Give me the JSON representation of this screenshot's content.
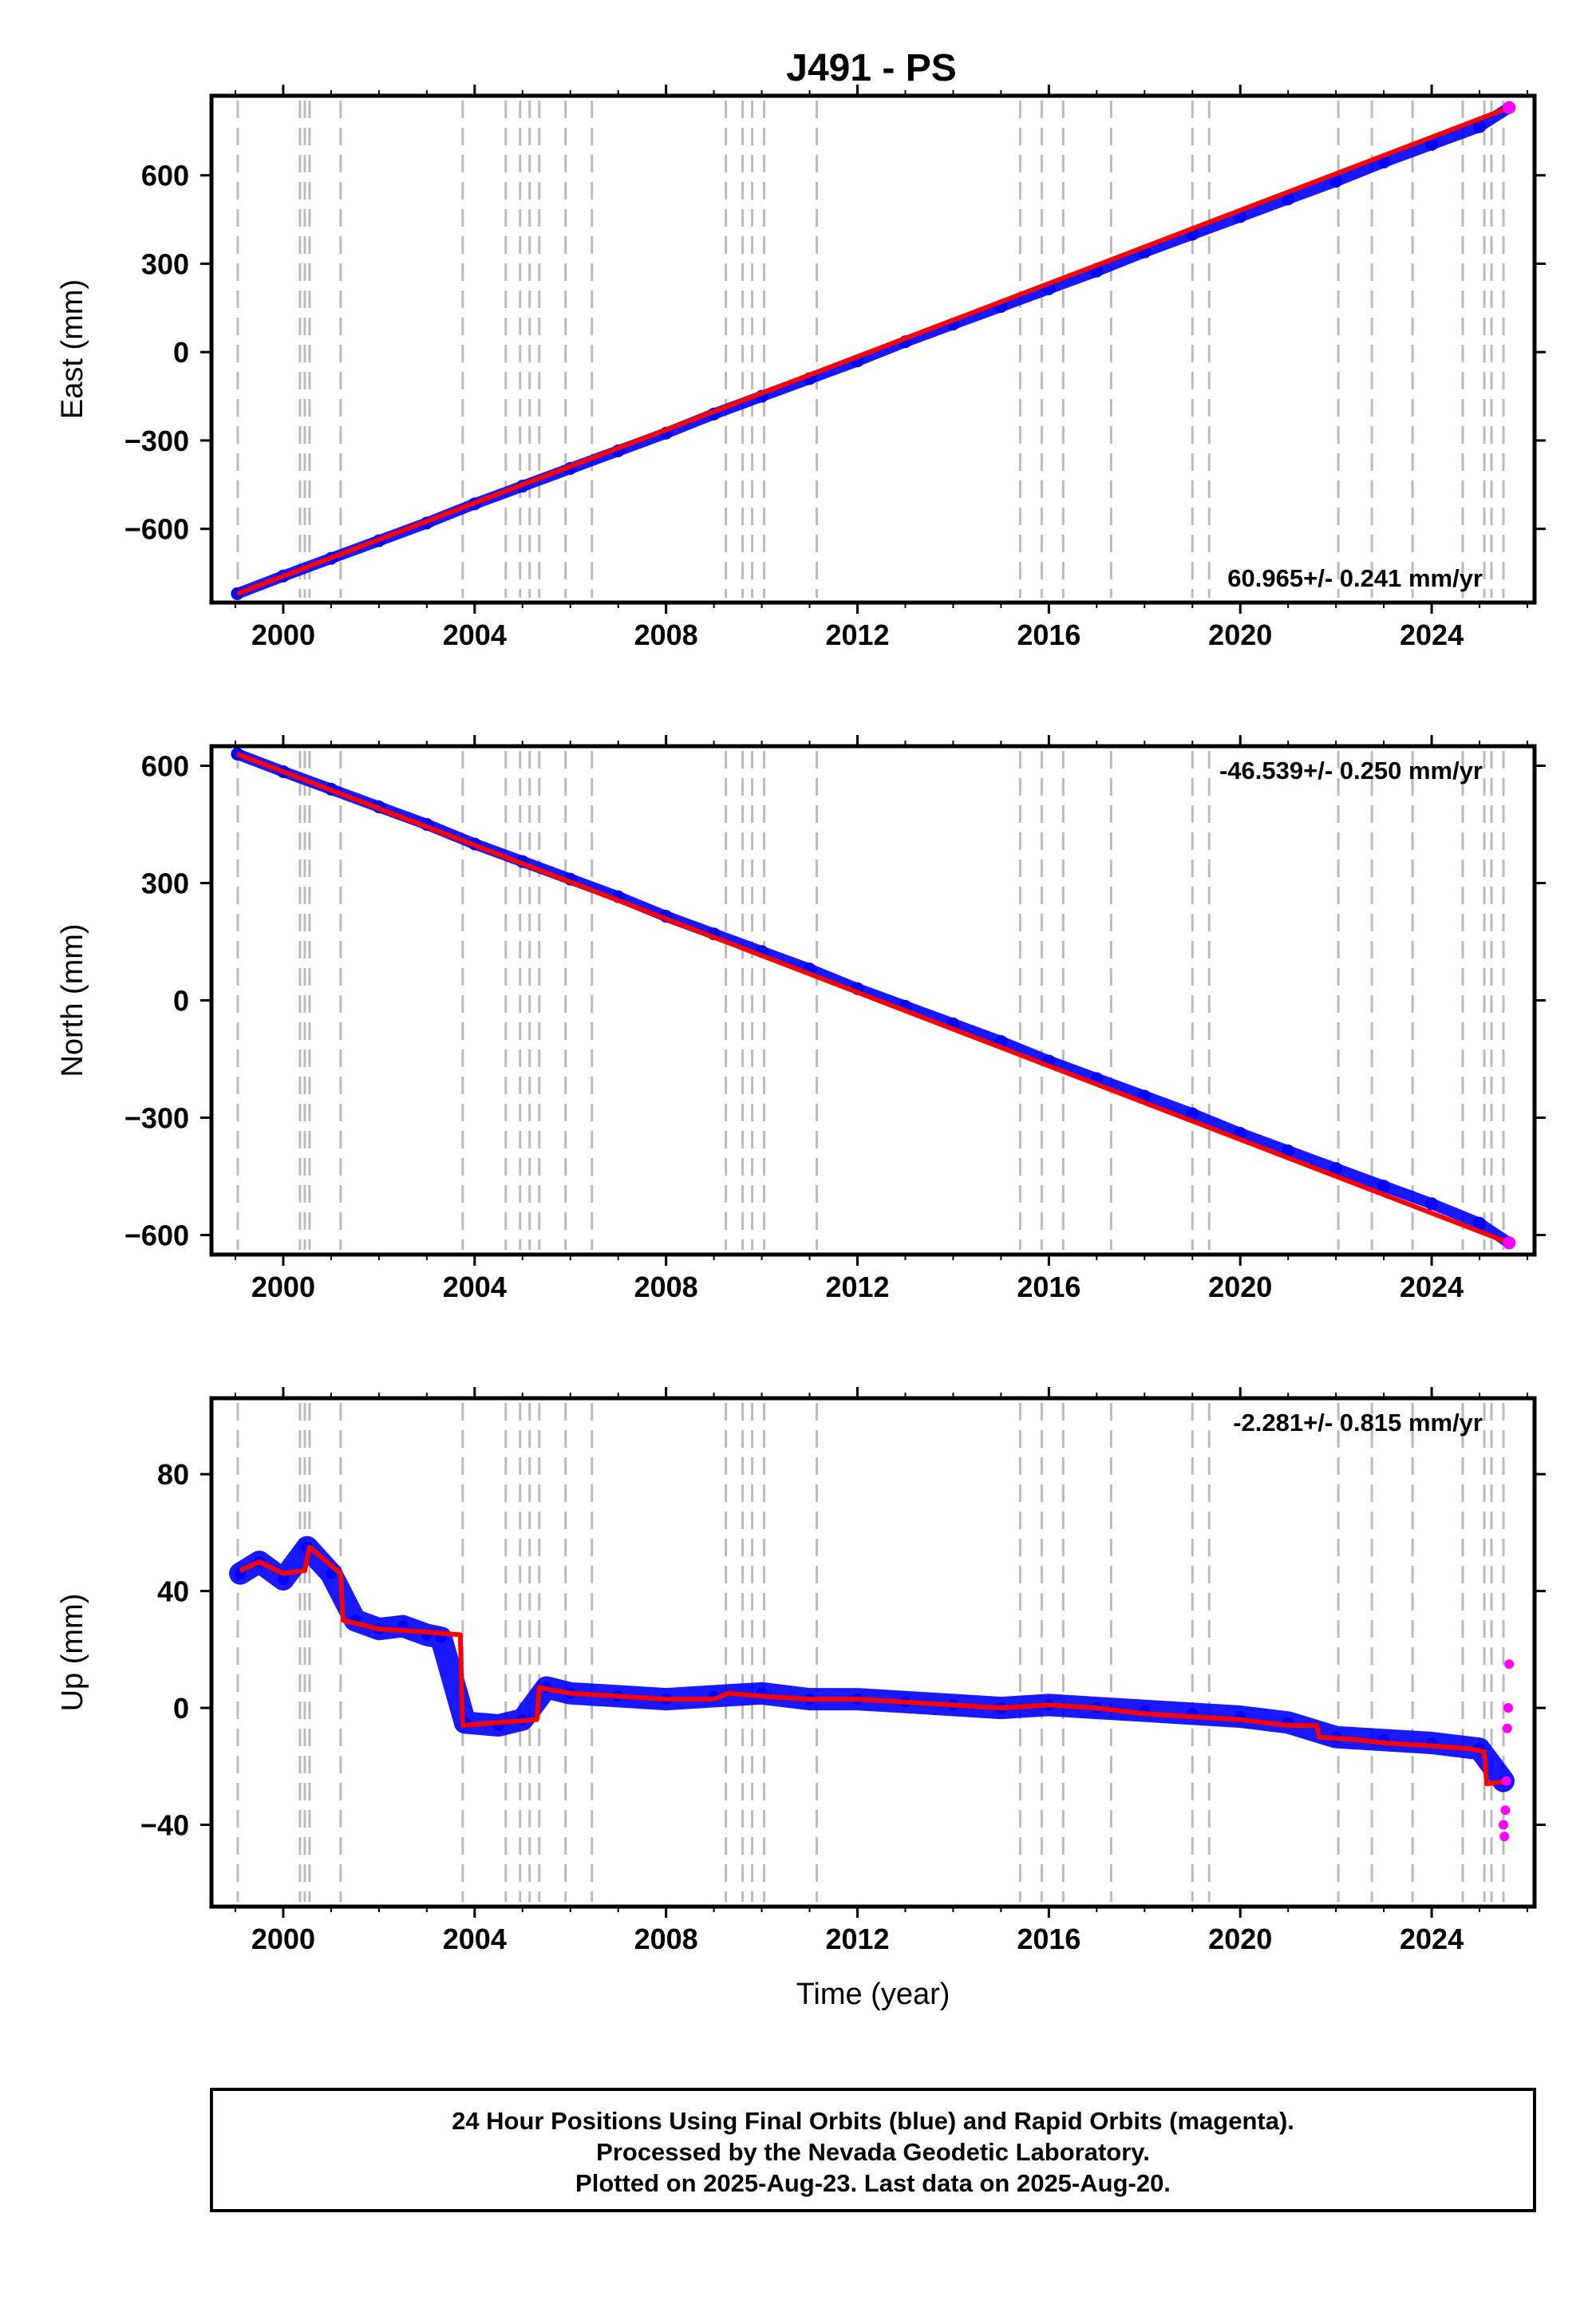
{
  "title": "J491 - PS",
  "chart_data": [
    {
      "type": "scatter",
      "id": "east",
      "ylabel": "East (mm)",
      "xlabel": "",
      "rate_text": "60.965+/- 0.241 mm/yr",
      "xlim": [
        1998.5,
        2026.15
      ],
      "ylim": [
        -850,
        870
      ],
      "xticks": [
        2000,
        2004,
        2008,
        2012,
        2016,
        2020,
        2024
      ],
      "yticks": [
        -600,
        -300,
        0,
        300,
        600
      ],
      "ytick_labels": [
        "−600",
        "−300",
        "0",
        "300",
        "600"
      ],
      "series": [
        {
          "color": "#0000ff",
          "x": [
            1999.04,
            2000.0,
            2001.0,
            2002.0,
            2003.0,
            2004.0,
            2005.0,
            2006.0,
            2007.0,
            2008.0,
            2009.0,
            2010.0,
            2011.0,
            2012.0,
            2013.0,
            2014.0,
            2015.0,
            2016.0,
            2017.0,
            2018.0,
            2019.0,
            2020.0,
            2021.0,
            2022.0,
            2023.0,
            2024.0,
            2025.0,
            2025.62
          ],
          "y": [
            -820,
            -760,
            -700,
            -640,
            -580,
            -515,
            -455,
            -395,
            -335,
            -275,
            -210,
            -150,
            -90,
            -30,
            35,
            95,
            155,
            215,
            275,
            340,
            400,
            460,
            520,
            580,
            645,
            705,
            765,
            830
          ]
        },
        {
          "color": "#ff0000",
          "x": [
            1999.04,
            2025.62
          ],
          "y": [
            -820,
            830
          ]
        }
      ]
    },
    {
      "type": "scatter",
      "id": "north",
      "ylabel": "North (mm)",
      "xlabel": "",
      "rate_text": "-46.539+/- 0.250 mm/yr",
      "xlim": [
        1998.5,
        2026.15
      ],
      "ylim": [
        -650,
        650
      ],
      "xticks": [
        2000,
        2004,
        2008,
        2012,
        2016,
        2020,
        2024
      ],
      "yticks": [
        -600,
        -300,
        0,
        300,
        600
      ],
      "ytick_labels": [
        "−600",
        "−300",
        "0",
        "300",
        "600"
      ],
      "series": [
        {
          "color": "#0000ff",
          "x": [
            1999.04,
            2000.0,
            2001.0,
            2002.0,
            2003.0,
            2004.0,
            2005.0,
            2006.0,
            2007.0,
            2008.0,
            2009.0,
            2010.0,
            2011.0,
            2012.0,
            2013.0,
            2014.0,
            2015.0,
            2016.0,
            2017.0,
            2018.0,
            2019.0,
            2020.0,
            2021.0,
            2022.0,
            2023.0,
            2024.0,
            2025.0,
            2025.62
          ],
          "y": [
            630,
            585,
            540,
            495,
            450,
            400,
            355,
            310,
            265,
            215,
            170,
            125,
            80,
            30,
            -15,
            -60,
            -105,
            -155,
            -200,
            -245,
            -290,
            -340,
            -385,
            -430,
            -475,
            -520,
            -570,
            -620
          ]
        },
        {
          "color": "#ff0000",
          "x": [
            1999.04,
            2025.62
          ],
          "y": [
            630,
            -620
          ]
        }
      ]
    },
    {
      "type": "scatter",
      "id": "up",
      "ylabel": "Up (mm)",
      "xlabel": "Time (year)",
      "rate_text": "-2.281+/- 0.815 mm/yr",
      "xlim": [
        1998.5,
        2026.15
      ],
      "ylim": [
        -68,
        106
      ],
      "xticks": [
        2000,
        2004,
        2008,
        2012,
        2016,
        2020,
        2024
      ],
      "yticks": [
        -40,
        0,
        40,
        80
      ],
      "ytick_labels": [
        "−40",
        "0",
        "40",
        "80"
      ],
      "series": [
        {
          "color": "#0000ff",
          "x": [
            1999.1,
            1999.5,
            2000.0,
            2000.5,
            2001.0,
            2001.5,
            2002.0,
            2002.5,
            2003.0,
            2003.3,
            2003.8,
            2004.5,
            2005.0,
            2005.5,
            2006.0,
            2007.0,
            2008.0,
            2009.0,
            2010.0,
            2011.0,
            2012.0,
            2013.0,
            2014.0,
            2015.0,
            2016.0,
            2017.0,
            2018.0,
            2019.0,
            2020.0,
            2021.0,
            2022.0,
            2023.0,
            2024.0,
            2025.0,
            2025.5
          ],
          "y": [
            46,
            50,
            44,
            55,
            46,
            30,
            27,
            28,
            25,
            24,
            -5,
            -6,
            -4,
            7,
            5,
            4,
            3,
            4,
            5,
            3,
            3,
            2,
            1,
            0,
            1,
            0,
            -1,
            -2,
            -3,
            -5,
            -10,
            -11,
            -12,
            -14,
            -25
          ]
        },
        {
          "color": "#ff0000",
          "x": [
            1999.1,
            1999.5,
            2000.0,
            2000.45,
            2000.55,
            2001.2,
            2001.25,
            2002.0,
            2003.0,
            2003.7,
            2003.75,
            2004.5,
            2005.3,
            2005.35,
            2006.0,
            2007.0,
            2008.0,
            2009.0,
            2009.3,
            2010.0,
            2011.0,
            2012.0,
            2013.0,
            2014.0,
            2015.0,
            2016.0,
            2017.0,
            2018.0,
            2019.0,
            2020.0,
            2021.0,
            2021.6,
            2021.65,
            2022.5,
            2023.0,
            2024.0,
            2024.8,
            2025.1,
            2025.15,
            2025.62
          ],
          "y": [
            47,
            50,
            46,
            47,
            55,
            46,
            30,
            27,
            26,
            25,
            -6,
            -5,
            -4,
            7,
            5,
            4,
            3,
            3,
            5,
            4,
            3,
            3,
            2,
            1,
            0,
            1,
            0,
            -2,
            -3,
            -4,
            -6,
            -6,
            -10,
            -11,
            -12,
            -13,
            -14,
            -15,
            -26,
            -25
          ]
        },
        {
          "color": "#ff00ff",
          "x": [
            2025.5,
            2025.52,
            2025.54,
            2025.56,
            2025.58,
            2025.6,
            2025.62
          ],
          "y": [
            -40,
            -44,
            -35,
            -25,
            -7,
            0,
            15
          ]
        }
      ]
    }
  ],
  "event_lines_x": [
    1999.05,
    2000.35,
    2000.45,
    2000.55,
    2001.2,
    2003.75,
    2004.65,
    2004.95,
    2005.15,
    2005.35,
    2005.9,
    2006.45,
    2009.25,
    2009.6,
    2009.8,
    2010.05,
    2011.15,
    2015.4,
    2015.85,
    2016.3,
    2017.3,
    2019.0,
    2019.35,
    2022.05,
    2022.75,
    2023.6,
    2024.65,
    2025.1,
    2025.25,
    2025.5
  ],
  "footer": {
    "line1": "24 Hour Positions Using Final Orbits (blue) and Rapid Orbits (magenta).",
    "line2": "Processed by the Nevada Geodetic Laboratory.",
    "line3": "Plotted on 2025-Aug-23. Last data on 2025-Aug-20."
  }
}
